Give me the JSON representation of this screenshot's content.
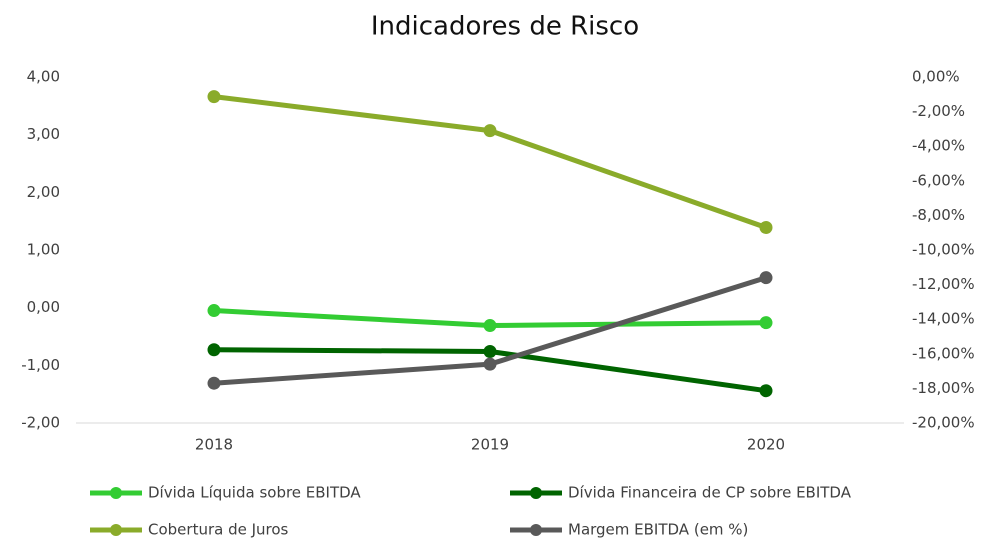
{
  "chart_data": {
    "type": "line",
    "title": "Indicadores de Risco",
    "categories": [
      "2018",
      "2019",
      "2020"
    ],
    "series": [
      {
        "name": "Dívida Líquida sobre EBITDA",
        "color": "#33cc33",
        "values": [
          -0.05,
          -0.31,
          -0.26
        ]
      },
      {
        "name": "Dívida Financeira de CP sobre EBITDA",
        "color": "#006400",
        "values": [
          -0.73,
          -0.76,
          -1.44
        ]
      },
      {
        "name": "Cobertura de Juros",
        "color": "#8aab2a",
        "values": [
          3.66,
          3.07,
          1.39
        ]
      },
      {
        "name": "Margem EBITDA (em %)",
        "color": "#595959",
        "values": [
          -17.7,
          -16.6,
          -11.6
        ],
        "axis": "y2"
      }
    ],
    "ylim": [
      -2,
      4
    ],
    "yticks": [
      {
        "value": -2,
        "label": "-2,00"
      },
      {
        "value": -1,
        "label": "-1,00"
      },
      {
        "value": 0,
        "label": "0,00"
      },
      {
        "value": 1,
        "label": "1,00"
      },
      {
        "value": 2,
        "label": "2,00"
      },
      {
        "value": 3,
        "label": "3,00"
      },
      {
        "value": 4,
        "label": "4,00"
      }
    ],
    "y2lim": [
      -20,
      0
    ],
    "y2ticks": [
      {
        "value": -20,
        "label": "-20,00%"
      },
      {
        "value": -18,
        "label": "-18,00%"
      },
      {
        "value": -16,
        "label": "-16,00%"
      },
      {
        "value": -14,
        "label": "-14,00%"
      },
      {
        "value": -12,
        "label": "-12,00%"
      },
      {
        "value": -10,
        "label": "-10,00%"
      },
      {
        "value": -8,
        "label": "-8,00%"
      },
      {
        "value": -6,
        "label": "-6,00%"
      },
      {
        "value": -4,
        "label": "-4,00%"
      },
      {
        "value": -2,
        "label": "-2,00%"
      },
      {
        "value": 0,
        "label": "0,00%"
      }
    ],
    "grid": false,
    "legend": "bottom"
  }
}
